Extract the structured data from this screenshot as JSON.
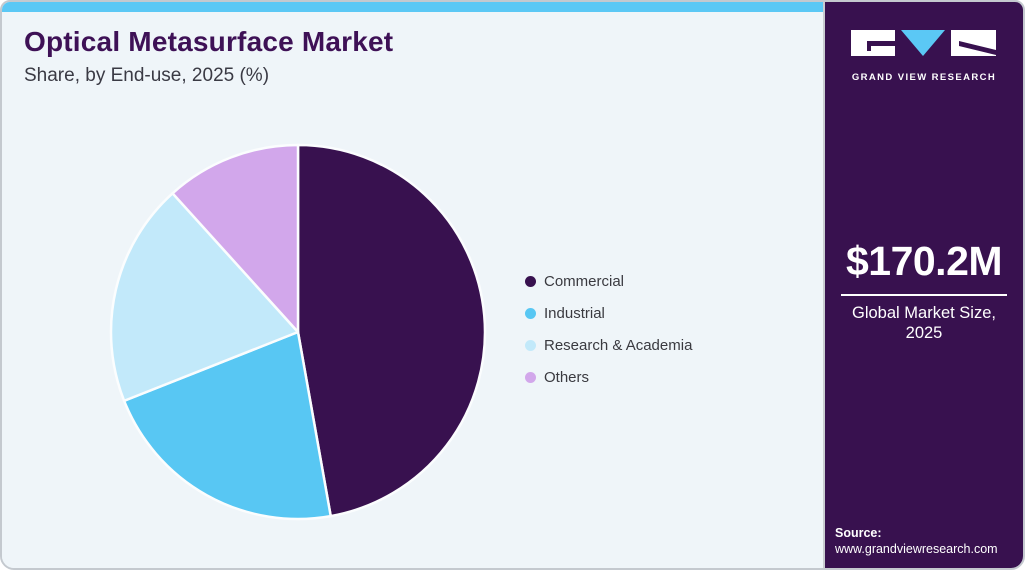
{
  "header": {
    "title": "Optical Metasurface Market",
    "subtitle": "Share, by End-use, 2025 (%)"
  },
  "chart_data": {
    "type": "pie",
    "title": "Optical Metasurface Market Share, by End-use, 2025 (%)",
    "unit": "%",
    "start_angle_deg": 0,
    "direction": "clockwise",
    "legend_position": "right",
    "slices": [
      {
        "label": "Commercial",
        "value": 47.2,
        "color": "#38114f"
      },
      {
        "label": "Industrial",
        "value": 21.8,
        "color": "#58c7f3"
      },
      {
        "label": "Research & Academia",
        "value": 19.3,
        "color": "#c2e9fa"
      },
      {
        "label": "Others",
        "value": 11.7,
        "color": "#d2a7eb"
      }
    ]
  },
  "sidebar": {
    "logo_text": "GRAND VIEW RESEARCH",
    "market_size_value": "$170.2M",
    "market_size_label_line1": "Global Market Size,",
    "market_size_label_line2": "2025",
    "source_label": "Source:",
    "source_url": "www.grandviewresearch.com"
  },
  "colors": {
    "accent_bar": "#5bc8f5",
    "card_background": "#eff5f9",
    "sidebar_background": "#38114f",
    "title_text": "#3e1156",
    "card_border": "#c4c9cf",
    "slice_separator": "#fbfdfe"
  }
}
